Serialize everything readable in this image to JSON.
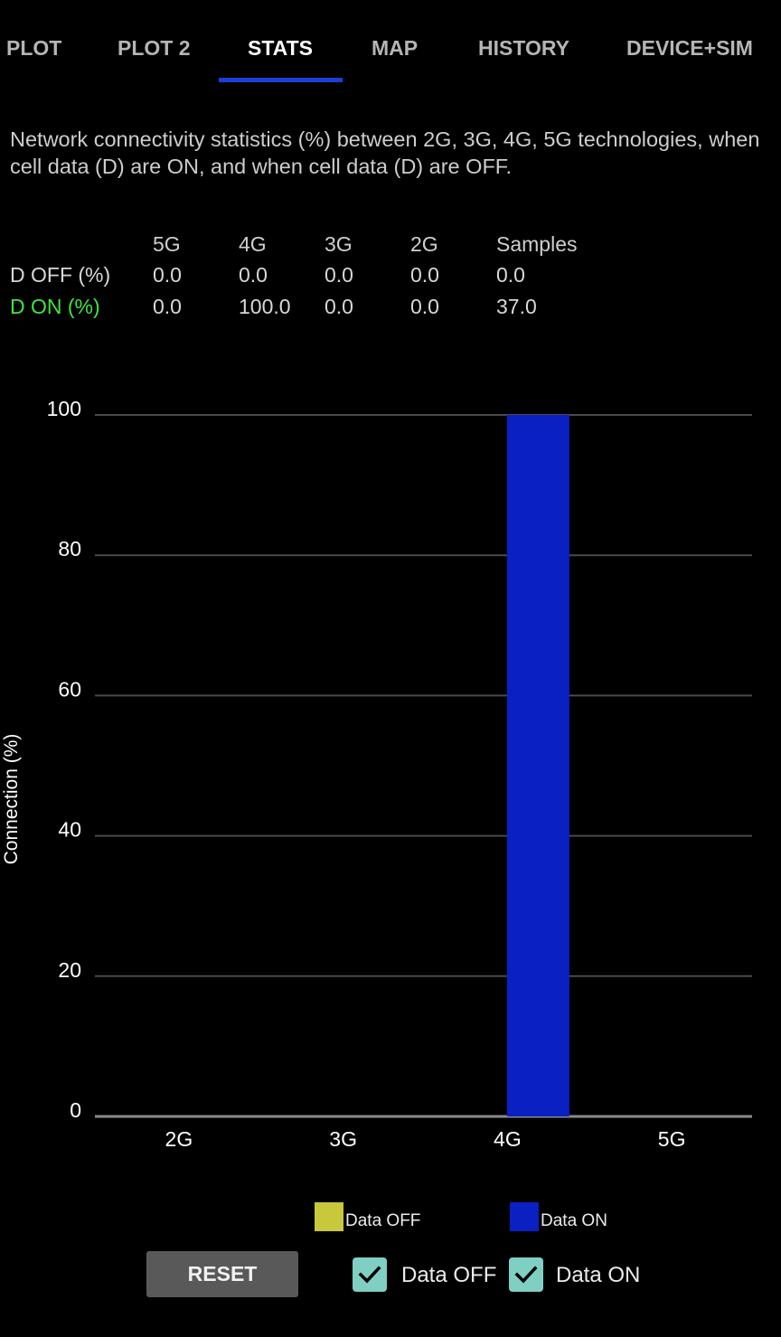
{
  "tabs": [
    {
      "label": "PLOT",
      "active": false
    },
    {
      "label": "PLOT 2",
      "active": false
    },
    {
      "label": "STATS",
      "active": true
    },
    {
      "label": "MAP",
      "active": false
    },
    {
      "label": "HISTORY",
      "active": false
    },
    {
      "label": "DEVICE+SIM",
      "active": false
    }
  ],
  "description": "Network connectivity statistics (%) between 2G, 3G, 4G, 5G technologies, when cell data (D) are ON, and when cell data (D) are OFF.",
  "stats_table": {
    "headers": [
      "5G",
      "4G",
      "3G",
      "2G",
      "Samples"
    ],
    "rows": [
      {
        "label": "D OFF (%)",
        "values": [
          "0.0",
          "0.0",
          "0.0",
          "0.0",
          "0.0"
        ]
      },
      {
        "label": "D ON (%)",
        "values": [
          "0.0",
          "100.0",
          "0.0",
          "0.0",
          "37.0"
        ]
      }
    ]
  },
  "colors": {
    "accent": "#1b3fd6",
    "data_off": "#c8c83c",
    "data_on": "#0a20c2",
    "d_on_label": "#3ee63e"
  },
  "chart_data": {
    "type": "bar",
    "categories": [
      "2G",
      "3G",
      "4G",
      "5G"
    ],
    "series": [
      {
        "name": "Data OFF",
        "values": [
          0,
          0,
          0,
          0
        ],
        "color": "#c8c83c"
      },
      {
        "name": "Data ON",
        "values": [
          0,
          0,
          100,
          0
        ],
        "color": "#0a20c2"
      }
    ],
    "ylabel": "Connection (%)",
    "ylim": [
      0,
      100
    ],
    "yticks": [
      0,
      20,
      40,
      60,
      80,
      100
    ],
    "grid": true,
    "legend": "bottom"
  },
  "controls": {
    "reset_label": "RESET",
    "checkboxes": [
      {
        "label": "Data OFF",
        "checked": true
      },
      {
        "label": "Data ON",
        "checked": true
      }
    ]
  }
}
